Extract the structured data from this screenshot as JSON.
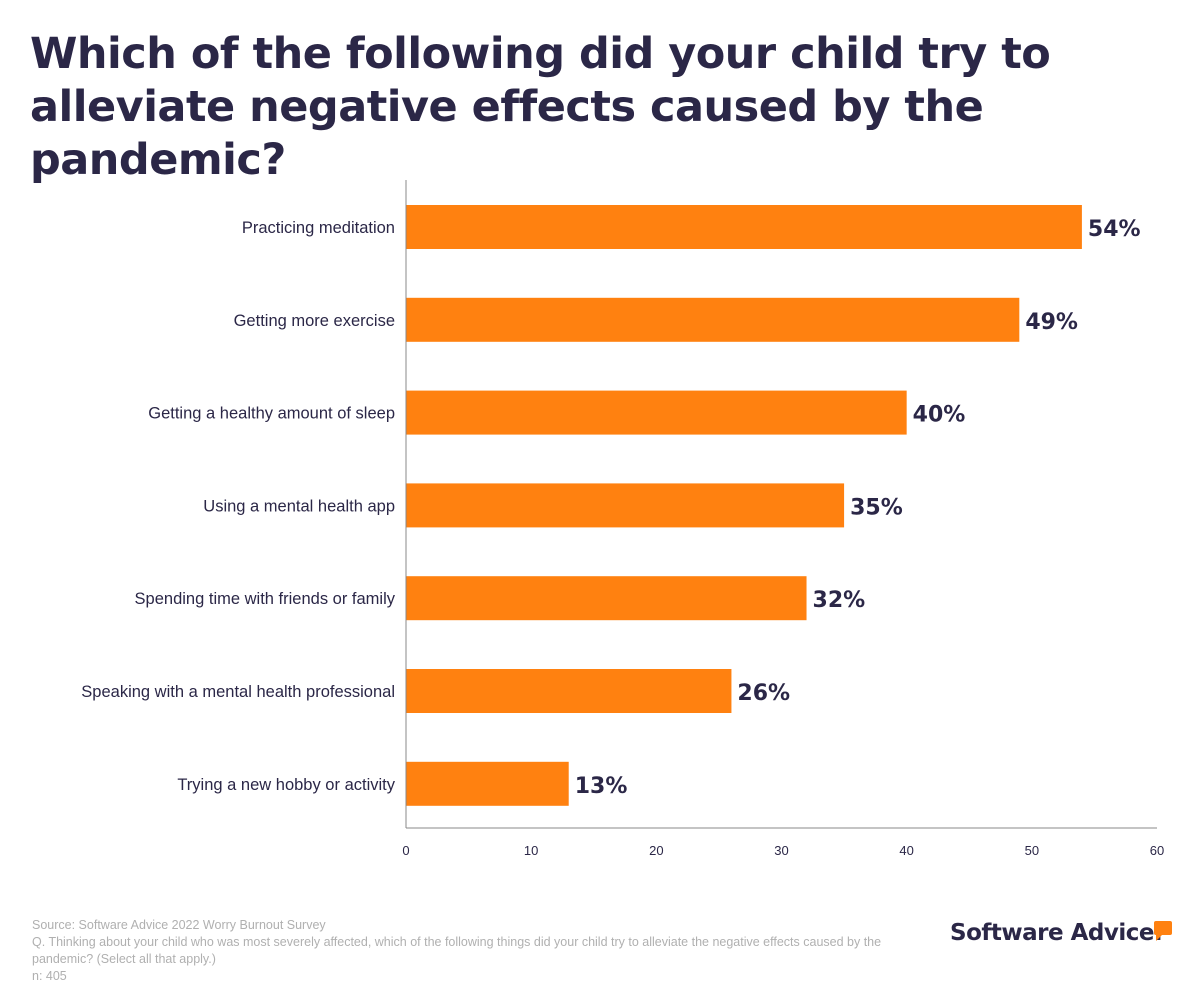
{
  "title_lines": [
    "Which of the following did your child try to",
    "alleviate negative effects caused by the pandemic?"
  ],
  "chart_data": {
    "type": "bar",
    "orientation": "horizontal",
    "title": "Which of the following did your child try to alleviate negative effects caused by the pandemic?",
    "categories": [
      "Practicing meditation",
      "Getting more exercise",
      "Getting a healthy amount of sleep",
      "Using a mental health app",
      "Spending time with friends or family",
      "Speaking with a mental health professional",
      "Trying a new hobby or activity"
    ],
    "values": [
      54,
      49,
      40,
      35,
      32,
      26,
      13
    ],
    "labels": [
      "54%",
      "49%",
      "40%",
      "35%",
      "32%",
      "26%",
      "13%"
    ],
    "xlim": [
      0,
      60
    ],
    "xticks": [
      0,
      10,
      20,
      30,
      40,
      50,
      60
    ],
    "bar_color": "#ff8110",
    "grid": false
  },
  "footer": {
    "source": "Source: Software Advice 2022 Worry Burnout Survey",
    "question": "Q. Thinking about your child who was most severely affected, which of the following things did your child try to alleviate the negative effects caused by the pandemic? (Select all that apply.)",
    "n": "n: 405"
  },
  "logo": "Software Advice."
}
